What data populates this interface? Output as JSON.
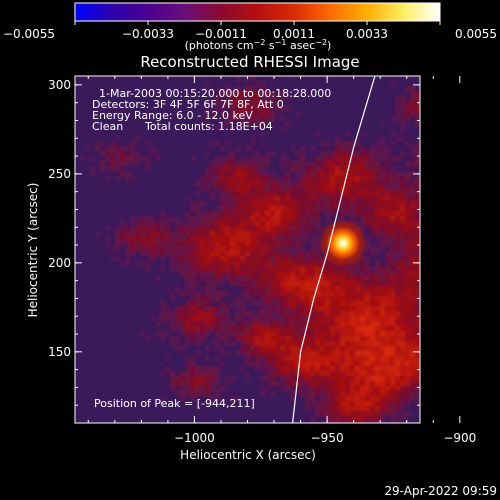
{
  "chart_data": {
    "type": "heatmap",
    "title": "Reconstructed RHESSI Image",
    "xlabel": "Heliocentric X (arcsec)",
    "ylabel": "Heliocentric Y (arcsec)",
    "xlim": [
      -1045,
      -945.0
    ],
    "xlim_note": "",
    "x_range": [
      -1045,
      -915
    ],
    "y_range": [
      110,
      305
    ],
    "x_ticks": [
      -1000,
      -950,
      -900
    ],
    "x_tick_labels": [
      "−1000",
      "−950",
      "−900"
    ],
    "y_ticks": [
      150,
      200,
      250,
      300
    ],
    "y_tick_labels": [
      "150",
      "200",
      "250",
      "300"
    ],
    "peak": [
      -944,
      211
    ],
    "colorbar": {
      "min": -0.0055,
      "max": 0.0055,
      "ticks": [
        -0.0055,
        -0.0033,
        -0.0011,
        0.0011,
        0.0033,
        0.0055
      ],
      "tick_labels": [
        "−0.0055",
        "−0.0033",
        "−0.0011",
        "0.0011",
        "0.0033",
        "0.0055"
      ],
      "unit_parts": [
        "(photons cm",
        "−2",
        " s",
        "−1",
        " asec",
        "−2",
        ")"
      ],
      "colors": [
        "#0000ff",
        "#2b00b0",
        "#4a0090",
        "#6a0f7a",
        "#8c0a30",
        "#b50f0f",
        "#dd2a05",
        "#ff6a00",
        "#ffb000",
        "#ffee60",
        "#ffffff"
      ]
    },
    "annotations": [
      "1-Mar-2003 00:15:20.000 to 00:18:28.000",
      "Detectors: 3F 4F 5F 6F 7F 8F, Att 0",
      "Energy Range: 6.0 - 12.0 keV",
      "Clean",
      "Total counts: 1.18E+04",
      "Position of Peak = [-944,211]"
    ],
    "limb_curve": [
      [
        -963,
        110
      ],
      [
        -960,
        150
      ],
      [
        -955,
        180
      ],
      [
        -950,
        205
      ],
      [
        -945,
        235
      ],
      [
        -940,
        265
      ],
      [
        -934,
        295
      ],
      [
        -932,
        305
      ]
    ]
  },
  "footer": {
    "date": "29-Apr-2022 09:59"
  }
}
